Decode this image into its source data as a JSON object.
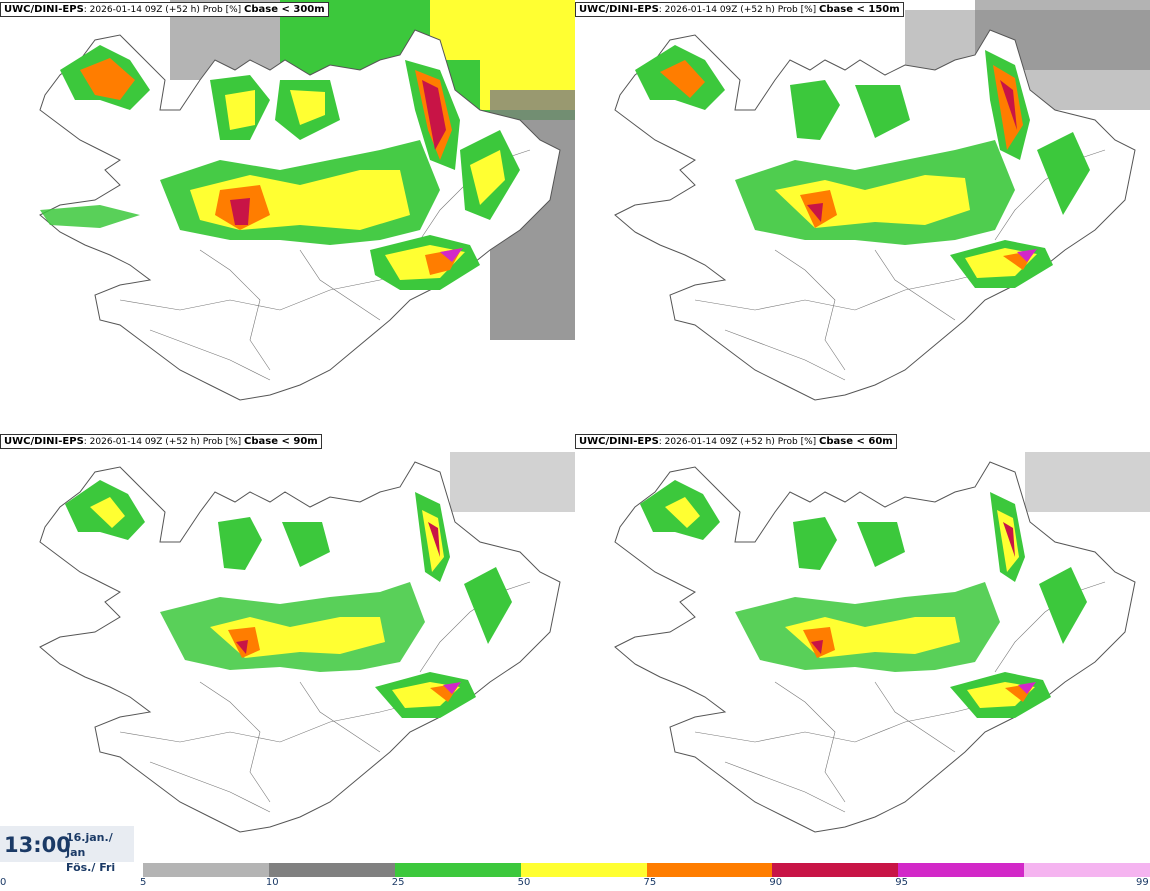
{
  "panels": [
    {
      "model": "UWC/DINI-EPS",
      "info": ": 2026-01-14 09Z (+52 h) Prob [%]",
      "condition": "Cbase < 300m"
    },
    {
      "model": "UWC/DINI-EPS",
      "info": ": 2026-01-14 09Z (+52 h) Prob [%]",
      "condition": "Cbase < 150m"
    },
    {
      "model": "UWC/DINI-EPS",
      "info": ": 2026-01-14 09Z (+52 h) Prob [%]",
      "condition": "Cbase < 90m"
    },
    {
      "model": "UWC/DINI-EPS",
      "info": ": 2026-01-14 09Z (+52 h) Prob [%]",
      "condition": "Cbase < 60m"
    }
  ],
  "valid_time": {
    "time": "13:00",
    "date_line1": "16.jan./ Jan",
    "date_line2": "Fös./ Fri"
  },
  "colorbar": {
    "ticks": [
      "0",
      "5",
      "10",
      "25",
      "50",
      "75",
      "90",
      "95",
      "99"
    ],
    "colors": [
      "#b4b4b4",
      "#808080",
      "#3cc83c",
      "#ffff32",
      "#ff7d00",
      "#c81446",
      "#d228c8",
      "#f5b4f0"
    ]
  }
}
